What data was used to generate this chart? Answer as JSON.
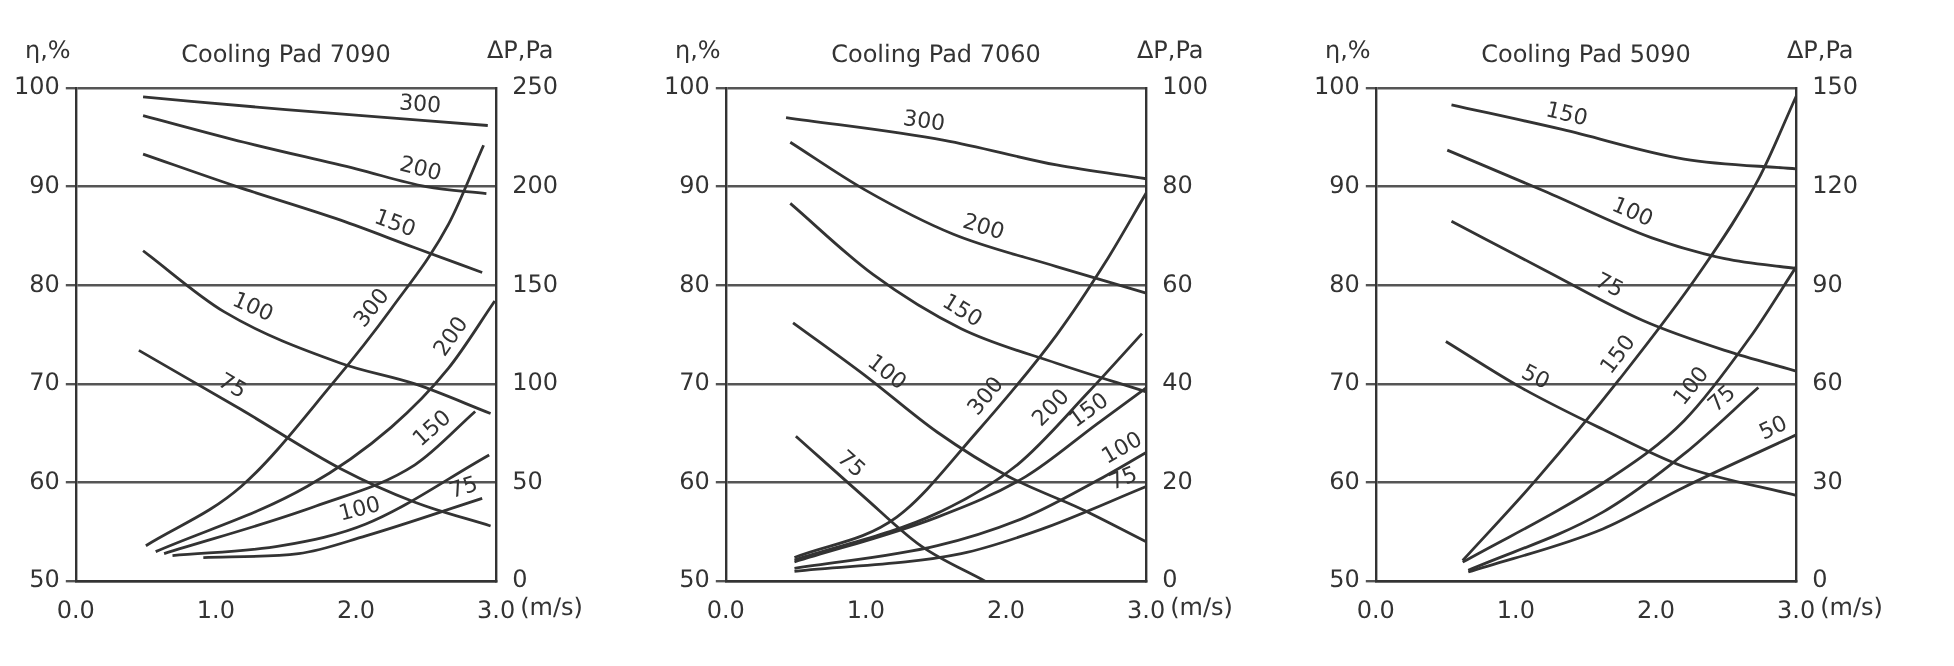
{
  "chart_data": [
    {
      "type": "line",
      "title": "Cooling Pad 7090",
      "xlabel": "(m/s)",
      "ylabel": "η,%",
      "y2label": "ΔP,Pa",
      "xlim": [
        0,
        3
      ],
      "xticks": [
        {
          "value": 0,
          "label": "0.0"
        },
        {
          "value": 1,
          "label": "1.0"
        },
        {
          "value": 2,
          "label": "2.0"
        },
        {
          "value": 3,
          "label": "3.0"
        }
      ],
      "ylim": [
        50,
        100
      ],
      "yticks": [
        50,
        60,
        70,
        80,
        90,
        100
      ],
      "y2lim": [
        0,
        250
      ],
      "y2ticks": [
        0,
        50,
        100,
        150,
        200,
        250
      ],
      "grid": "y",
      "legend": false,
      "marker": "none",
      "line_style": "solid",
      "series": [
        {
          "name": "300",
          "color": "#333333",
          "axis": "y",
          "x": [
            0.48,
            1.5,
            2.94
          ],
          "values": [
            99.1,
            97.8,
            96.2
          ]
        },
        {
          "name": "200",
          "color": "#333333",
          "axis": "y",
          "x": [
            0.48,
            1.2,
            2.0,
            2.5,
            2.93
          ],
          "values": [
            97.2,
            94.5,
            91.8,
            90.0,
            89.3
          ]
        },
        {
          "name": "150",
          "color": "#333333",
          "axis": "y",
          "x": [
            0.48,
            1.15,
            1.89,
            2.42,
            2.9
          ],
          "values": [
            93.3,
            90.0,
            86.6,
            83.8,
            81.3
          ]
        },
        {
          "name": "100",
          "color": "#333333",
          "axis": "y",
          "x": [
            0.48,
            1.06,
            1.89,
            2.42,
            2.96
          ],
          "values": [
            83.5,
            77.3,
            72.1,
            70.0,
            67.0
          ]
        },
        {
          "name": "75",
          "color": "#333333",
          "axis": "y",
          "x": [
            0.45,
            1.18,
            1.89,
            2.42,
            2.96
          ],
          "values": [
            73.4,
            67.4,
            61.4,
            58.0,
            55.6
          ]
        },
        {
          "name": "300",
          "color": "#333333",
          "axis": "y2",
          "x": [
            0.5,
            1.18,
            1.83,
            2.25,
            2.66,
            2.91
          ],
          "values": [
            18,
            48,
            100,
            138,
            181,
            221
          ]
        },
        {
          "name": "200",
          "color": "#333333",
          "axis": "y2",
          "x": [
            0.57,
            1.65,
            2.25,
            2.66,
            2.99
          ],
          "values": [
            15,
            48,
            78,
            108,
            142
          ]
        },
        {
          "name": "150",
          "color": "#333333",
          "axis": "y2",
          "x": [
            0.63,
            1.71,
            2.42,
            2.85
          ],
          "values": [
            14,
            38,
            59,
            86
          ]
        },
        {
          "name": "100",
          "color": "#333333",
          "axis": "y2",
          "x": [
            0.69,
            1.47,
            2.07,
            2.95
          ],
          "values": [
            13,
            18,
            29,
            64
          ]
        },
        {
          "name": "75",
          "color": "#333333",
          "axis": "y2",
          "x": [
            0.91,
            1.59,
            2.07,
            2.9
          ],
          "values": [
            12,
            14,
            23,
            42
          ]
        }
      ]
    },
    {
      "type": "line",
      "title": "Cooling Pad 7060",
      "xlabel": "(m/s)",
      "ylabel": "η,%",
      "y2label": "ΔP,Pa",
      "xlim": [
        0,
        3
      ],
      "xticks": [
        {
          "value": 0,
          "label": "0.0"
        },
        {
          "value": 1,
          "label": "1.0"
        },
        {
          "value": 2,
          "label": "2.0"
        },
        {
          "value": 3,
          "label": "3.0"
        }
      ],
      "ylim": [
        50,
        100
      ],
      "yticks": [
        50,
        60,
        70,
        80,
        90,
        100
      ],
      "y2lim": [
        0,
        100
      ],
      "y2ticks": [
        0,
        20,
        40,
        60,
        80,
        100
      ],
      "grid": "y",
      "legend": false,
      "marker": "none",
      "line_style": "solid",
      "series": [
        {
          "name": "300",
          "color": "#333333",
          "axis": "y",
          "x": [
            0.43,
            1.56,
            2.36,
            3.0
          ],
          "values": [
            97.0,
            94.7,
            92.2,
            90.8
          ]
        },
        {
          "name": "200",
          "color": "#333333",
          "axis": "y",
          "x": [
            0.46,
            0.99,
            1.62,
            2.36,
            3.0
          ],
          "values": [
            94.5,
            89.7,
            85.2,
            81.9,
            79.2
          ]
        },
        {
          "name": "150",
          "color": "#333333",
          "axis": "y",
          "x": [
            0.46,
            1.05,
            1.68,
            2.36,
            3.0
          ],
          "values": [
            88.3,
            81.1,
            75.6,
            72.1,
            69.2
          ]
        },
        {
          "name": "100",
          "color": "#333333",
          "axis": "y",
          "x": [
            0.48,
            0.99,
            1.51,
            2.02,
            2.54,
            3.0
          ],
          "values": [
            76.2,
            70.9,
            65.1,
            60.6,
            57.3,
            54.0
          ]
        },
        {
          "name": "75",
          "color": "#333333",
          "axis": "y",
          "x": [
            0.5,
            0.99,
            1.39,
            1.85
          ],
          "values": [
            64.7,
            58.5,
            53.6,
            50
          ]
        },
        {
          "name": "300",
          "color": "#333333",
          "axis": "y2",
          "x": [
            0.49,
            1.22,
            1.79,
            2.36,
            2.71,
            3.0
          ],
          "values": [
            4.8,
            13,
            30.2,
            49.9,
            64.7,
            78.7
          ]
        },
        {
          "name": "200",
          "color": "#333333",
          "axis": "y2",
          "x": [
            0.49,
            1.51,
            2.08,
            2.59,
            2.97
          ],
          "values": [
            4.3,
            13.8,
            23.6,
            38.4,
            50.2
          ]
        },
        {
          "name": "150",
          "color": "#333333",
          "axis": "y2",
          "x": [
            0.49,
            1.51,
            2.14,
            2.65,
            3.0
          ],
          "values": [
            3.9,
            13,
            21.2,
            31.9,
            39.2
          ]
        },
        {
          "name": "100",
          "color": "#333333",
          "axis": "y2",
          "x": [
            0.49,
            1.51,
            2.14,
            2.65,
            3.0
          ],
          "values": [
            2.6,
            7.2,
            13,
            20.4,
            26.1
          ]
        },
        {
          "name": "75",
          "color": "#333333",
          "axis": "y2",
          "x": [
            0.49,
            1.68,
            2.25,
            3.0
          ],
          "values": [
            2.0,
            5.6,
            10.5,
            19.2
          ]
        }
      ]
    },
    {
      "type": "line",
      "title": "Cooling Pad 5090",
      "xlabel": "(m/s)",
      "ylabel": "η,%",
      "y2label": "ΔP,Pa",
      "xlim": [
        0,
        3
      ],
      "xticks": [
        {
          "value": 0,
          "label": "0.0"
        },
        {
          "value": 1,
          "label": "1.0"
        },
        {
          "value": 2,
          "label": "2.0"
        },
        {
          "value": 3,
          "label": "3.0"
        }
      ],
      "ylim": [
        50,
        100
      ],
      "yticks": [
        50,
        60,
        70,
        80,
        90,
        100
      ],
      "y2lim": [
        0,
        150
      ],
      "y2ticks": [
        0,
        30,
        60,
        90,
        120,
        150
      ],
      "grid": "y",
      "legend": false,
      "marker": "none",
      "line_style": "solid",
      "series": [
        {
          "name": "150",
          "color": "#333333",
          "axis": "y",
          "x": [
            0.54,
            1.33,
            2.2,
            3.0
          ],
          "values": [
            98.3,
            95.8,
            92.8,
            91.8
          ]
        },
        {
          "name": "100",
          "color": "#333333",
          "axis": "y",
          "x": [
            0.51,
            1.21,
            1.97,
            2.49,
            3.0
          ],
          "values": [
            93.7,
            89.5,
            84.8,
            82.7,
            81.7
          ]
        },
        {
          "name": "75",
          "color": "#333333",
          "axis": "y",
          "x": [
            0.54,
            1.21,
            1.91,
            2.49,
            3.0
          ],
          "values": [
            86.5,
            81.5,
            76.4,
            73.4,
            71.3
          ]
        },
        {
          "name": "50",
          "color": "#333333",
          "axis": "y",
          "x": [
            0.5,
            1.04,
            1.62,
            2.2,
            3.0
          ],
          "values": [
            74.3,
            69.6,
            65.4,
            61.6,
            58.7
          ]
        },
        {
          "name": "150",
          "color": "#333333",
          "axis": "y2",
          "x": [
            0.62,
            1.15,
            1.74,
            2.32,
            2.73,
            3.0
          ],
          "values": [
            6.3,
            31.1,
            61.5,
            94.4,
            122.2,
            147.5
          ]
        },
        {
          "name": "100",
          "color": "#333333",
          "axis": "y2",
          "x": [
            0.62,
            1.62,
            2.2,
            2.67,
            3.0
          ],
          "values": [
            5.8,
            29.8,
            48.8,
            74.1,
            95.6
          ]
        },
        {
          "name": "75",
          "color": "#333333",
          "axis": "y2",
          "x": [
            0.66,
            1.62,
            2.2,
            2.73
          ],
          "values": [
            3.3,
            21,
            38.7,
            58.9
          ]
        },
        {
          "name": "50",
          "color": "#333333",
          "axis": "y2",
          "x": [
            0.66,
            1.62,
            2.2,
            3.0
          ],
          "values": [
            2.8,
            15.9,
            28.6,
            44.5
          ]
        }
      ]
    }
  ]
}
